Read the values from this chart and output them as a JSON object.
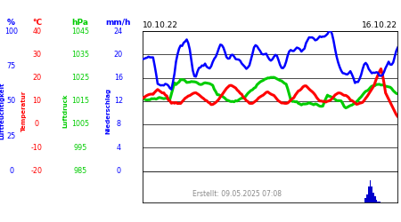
{
  "date_left": "10.10.22",
  "date_right": "16.10.22",
  "footer": "Erstellt: 09.05.2025 07:08",
  "bg_color": "#ffffff",
  "colors": {
    "blue": "#0000ff",
    "red": "#ff0000",
    "green": "#00cc00",
    "dark_blue": "#0000cc"
  },
  "ylim_hpa": [
    985,
    1045
  ],
  "hpa_ticks": [
    985,
    995,
    1005,
    1015,
    1025,
    1035,
    1045
  ],
  "col_labels": {
    "pct": "%",
    "temp": "°C",
    "hpa": "hPa",
    "mmh": "mm/h"
  },
  "pct_ticks": {
    "985": "0",
    "1000": "25",
    "1015": "50",
    "1030": "75",
    "1045": "100"
  },
  "temp_ticks": {
    "985": "-20",
    "995": "-10",
    "1005": "0",
    "1015": "10",
    "1025": "20",
    "1035": "30",
    "1045": "40"
  },
  "hpa_tick_labels": {
    "985": "985",
    "995": "995",
    "1005": "1005",
    "1015": "1015",
    "1025": "1025",
    "1035": "1035",
    "1045": "1045"
  },
  "mmh_ticks": {
    "985": "0",
    "995": "4",
    "1005": "8",
    "1015": "12",
    "1025": "16",
    "1035": "20",
    "1045": "24"
  },
  "vertical_labels": [
    "Luftfeuchtigkeit",
    "Temperatur",
    "Luftdruck",
    "Niederschlag"
  ],
  "vertical_colors": [
    "#0000ff",
    "#ff0000",
    "#00cc00",
    "#0000ff"
  ],
  "n_points": 168
}
